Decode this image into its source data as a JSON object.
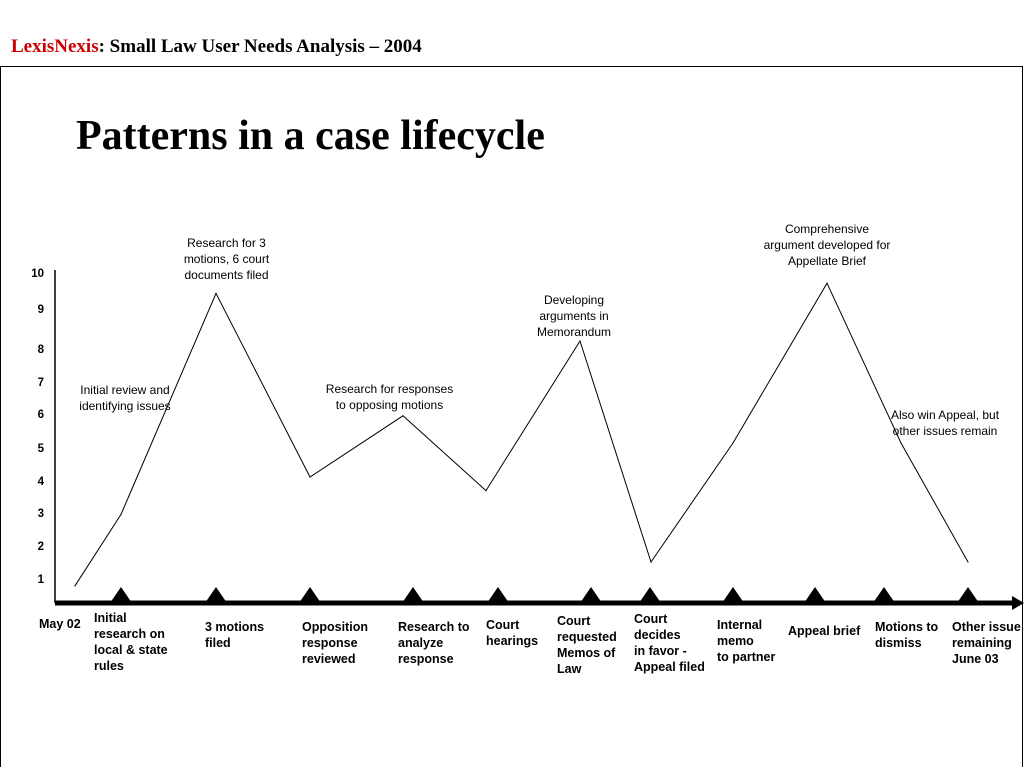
{
  "header": {
    "brand": "LexisNexis",
    "rest": ":  Small Law User Needs Analysis – 2004",
    "brand_color": "#cc0000"
  },
  "slide": {
    "title": "Patterns in a case lifecycle"
  },
  "chart_data": {
    "type": "line",
    "title": "",
    "xlabel": "",
    "ylabel": "",
    "ylim": [
      0.5,
      10
    ],
    "y_ticks": [
      "10",
      "9",
      "8",
      "7",
      "6",
      "5",
      "4",
      "3",
      "2",
      "1"
    ],
    "grid": false,
    "series": [
      {
        "values": [
          0.8,
          2.9,
          9.4,
          4.0,
          5.8,
          3.6,
          8.0,
          1.5,
          5.0,
          9.7,
          5.0,
          1.5
        ]
      }
    ],
    "events": [
      {
        "label": "May 02"
      },
      {
        "label": "Initial\nresearch on\nlocal & state\nrules"
      },
      {
        "label": "3 motions\nfiled"
      },
      {
        "label": "Opposition\nresponse\nreviewed"
      },
      {
        "label": "Research to\nanalyze\nresponse"
      },
      {
        "label": "Court\nhearings"
      },
      {
        "label": "Court\nrequested\nMemos of\nLaw"
      },
      {
        "label": "Court\ndecides\nin favor -\nAppeal filed"
      },
      {
        "label": "Internal\nmemo\nto partner"
      },
      {
        "label": "Appeal brief"
      },
      {
        "label": "Motions to\ndismiss"
      },
      {
        "label": "Other issue\nremaining\n June 03"
      }
    ],
    "annotations": [
      {
        "text": "Initial review and\nidentifying issues"
      },
      {
        "text": "Research for 3\nmotions, 6 court\ndocuments filed"
      },
      {
        "text": "Research for responses\nto opposing motions"
      },
      {
        "text": "Developing\narguments in\nMemorandum"
      },
      {
        "text": "Comprehensive\nargument developed for\nAppellate Brief"
      },
      {
        "text": "Also win Appeal, but\nother issues remain"
      }
    ]
  }
}
